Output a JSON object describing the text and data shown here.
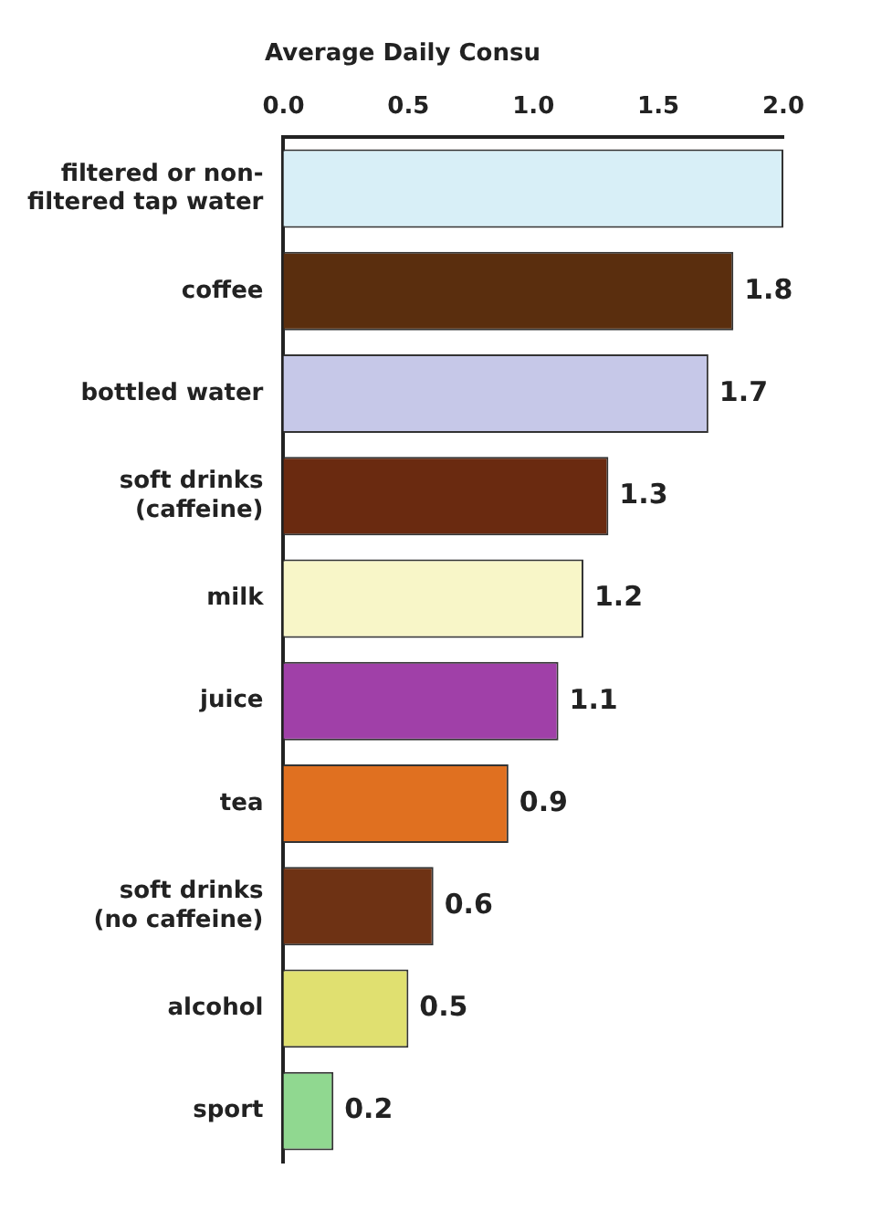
{
  "chart_data": {
    "type": "bar",
    "orientation": "horizontal",
    "title": "Average Daily Consu",
    "categories": [
      "filtered or non-\nfiltered tap water",
      "coffee",
      "bottled water",
      "soft drinks\n(caffeine)",
      "milk",
      "juice",
      "tea",
      "soft drinks\n(no caffeine)",
      "alcohol",
      "sport"
    ],
    "values": [
      2.0,
      1.8,
      1.7,
      1.3,
      1.2,
      1.1,
      0.9,
      0.6,
      0.5,
      0.2
    ],
    "colors": [
      "#d8eff7",
      "#5a2e0e",
      "#c6c8e8",
      "#6a2a10",
      "#f8f6c8",
      "#a040a8",
      "#e07020",
      "#6e3214",
      "#e0e070",
      "#90d890"
    ],
    "value_labels": [
      null,
      "1.8",
      "1.7",
      "1.3",
      "1.2",
      "1.1",
      "0.9",
      "0.6",
      "0.5",
      "0.2"
    ],
    "xlim": [
      0,
      2
    ],
    "xticks": [
      {
        "value": 0,
        "label": "0.0"
      },
      {
        "value": 0.5,
        "label": "0.5"
      },
      {
        "value": 1,
        "label": "1.0"
      },
      {
        "value": 1.5,
        "label": "1.5"
      },
      {
        "value": 2,
        "label": "2.0"
      }
    ],
    "grid": false,
    "legend": false
  }
}
